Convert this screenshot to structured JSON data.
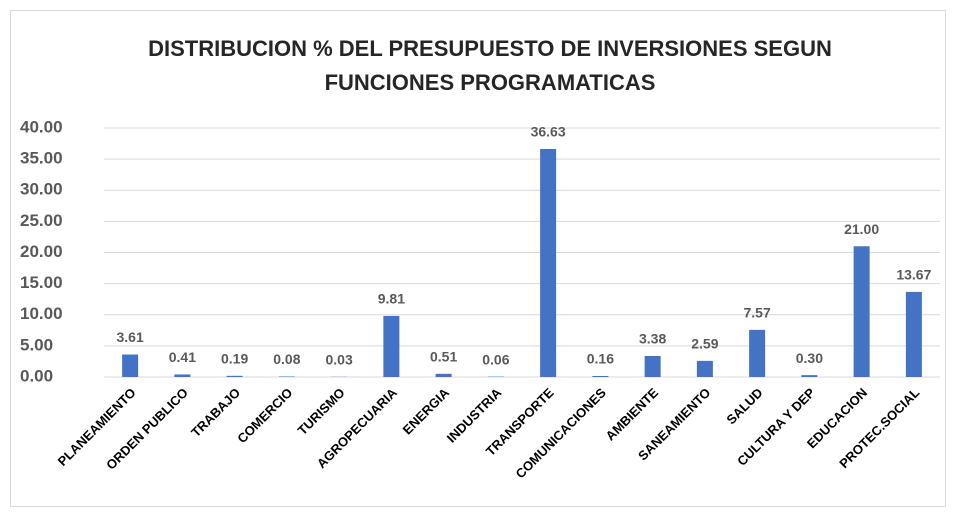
{
  "chart_data": {
    "type": "bar",
    "title": "DISTRIBUCION % DEL PRESUPUESTO DE INVERSIONES SEGUN FUNCIONES PROGRAMATICAS",
    "categories": [
      "PLANEAMIENTO",
      "ORDEN PUBLICO",
      "TRABAJO",
      "COMERCIO",
      "TURISMO",
      "AGROPECUARIA",
      "ENERGIA",
      "INDUSTRIA",
      "TRANSPORTE",
      "COMUNICACIONES",
      "AMBIENTE",
      "SANEAMIENTO",
      "SALUD",
      "CULTURA Y DEP",
      "EDUCACION",
      "PROTEC.SOCIAL"
    ],
    "values": [
      3.61,
      0.41,
      0.19,
      0.08,
      0.03,
      9.81,
      0.51,
      0.06,
      36.63,
      0.16,
      3.38,
      2.59,
      7.57,
      0.3,
      21.0,
      13.67
    ],
    "value_labels": [
      "3.61",
      "0.41",
      "0.19",
      "0.08",
      "0.03",
      "9.81",
      "0.51",
      "0.06",
      "36.63",
      "0.16",
      "3.38",
      "2.59",
      "7.57",
      "0.30",
      "21.00",
      "13.67"
    ],
    "color": "#4472c4",
    "ylim": [
      0,
      40
    ],
    "yticks": [
      {
        "value": 0,
        "label": "0.00"
      },
      {
        "value": 5,
        "label": "5.00"
      },
      {
        "value": 10,
        "label": "10.00"
      },
      {
        "value": 15,
        "label": "15.00"
      },
      {
        "value": 20,
        "label": "20.00"
      },
      {
        "value": 25,
        "label": "25.00"
      },
      {
        "value": 30,
        "label": "30.00"
      },
      {
        "value": 35,
        "label": "35.00"
      },
      {
        "value": 40,
        "label": "40.00"
      }
    ],
    "grid": true
  }
}
